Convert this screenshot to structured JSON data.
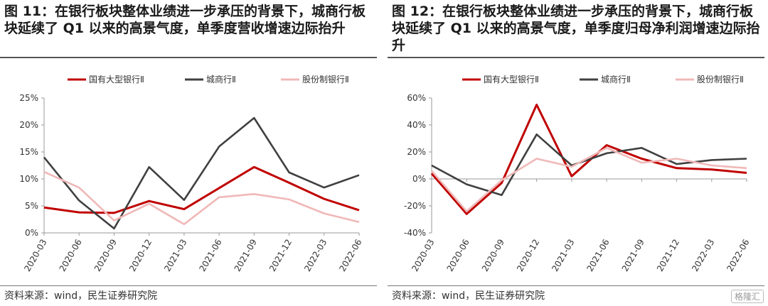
{
  "colors": {
    "state": "#c00000",
    "city": "#404040",
    "joint": "#f0b8b8"
  },
  "panels": [
    {
      "title": "图 11：在银行板块整体业绩进一步承压的背景下，城商行板块延续了 Q1 以来的高景气度，单季度营收增速边际抬升",
      "source": "资料来源：wind，民生证券研究院",
      "chart_data": {
        "type": "line",
        "x": [
          "2020-03",
          "2020-06",
          "2020-09",
          "2020-12",
          "2021-03",
          "2021-06",
          "2021-09",
          "2021-12",
          "2022-03",
          "2022-06"
        ],
        "ylim": [
          0,
          25
        ],
        "yticks": [
          0,
          5,
          10,
          15,
          20,
          25
        ],
        "ytick_labels": [
          "0%",
          "5%",
          "10%",
          "15%",
          "20%",
          "25%"
        ],
        "legend_position": "top",
        "series": [
          {
            "name": "国有大型银行Ⅱ",
            "color_key": "state",
            "values": [
              4.7,
              3.8,
              3.7,
              5.9,
              4.4,
              8.3,
              12.2,
              9.3,
              6.3,
              4.2
            ]
          },
          {
            "name": "城商行Ⅱ",
            "color_key": "city",
            "values": [
              14.0,
              6.0,
              0.8,
              12.2,
              6.1,
              16.0,
              21.3,
              11.2,
              8.4,
              10.7
            ]
          },
          {
            "name": "股份制银行Ⅱ",
            "color_key": "joint",
            "values": [
              11.3,
              8.4,
              2.3,
              5.4,
              1.6,
              6.6,
              7.2,
              6.2,
              3.6,
              2.0
            ]
          }
        ]
      }
    },
    {
      "title": "图 12：在银行板块整体业绩进一步承压的背景下，城商行板块延续了 Q1 以来的高景气度，单季度归母净利润增速边际抬升",
      "source": "资料来源：wind，民生证券研究院",
      "chart_data": {
        "type": "line",
        "x": [
          "2020-03",
          "2020-06",
          "2020-09",
          "2020-12",
          "2021-03",
          "2021-06",
          "2021-09",
          "2021-12",
          "2022-03",
          "2022-06"
        ],
        "ylim": [
          -40,
          60
        ],
        "yticks": [
          -40,
          -20,
          0,
          20,
          40,
          60
        ],
        "ytick_labels": [
          "-40%",
          "-20%",
          "0%",
          "20%",
          "40%",
          "60%"
        ],
        "legend_position": "top",
        "series": [
          {
            "name": "国有大型银行Ⅱ",
            "color_key": "state",
            "values": [
              4.0,
              -26.0,
              -3.0,
              55.0,
              2.0,
              25.0,
              15.0,
              8.0,
              7.0,
              4.5
            ]
          },
          {
            "name": "城商行Ⅱ",
            "color_key": "city",
            "values": [
              10.0,
              -4.0,
              -12.0,
              33.0,
              10.0,
              19.0,
              23.0,
              11.0,
              14.0,
              15.0
            ]
          },
          {
            "name": "股份制银行Ⅱ",
            "color_key": "joint",
            "values": [
              6.0,
              -24.0,
              -1.0,
              15.0,
              9.0,
              23.0,
              12.0,
              15.0,
              10.0,
              8.0
            ]
          }
        ]
      }
    }
  ],
  "watermark": "格隆汇"
}
